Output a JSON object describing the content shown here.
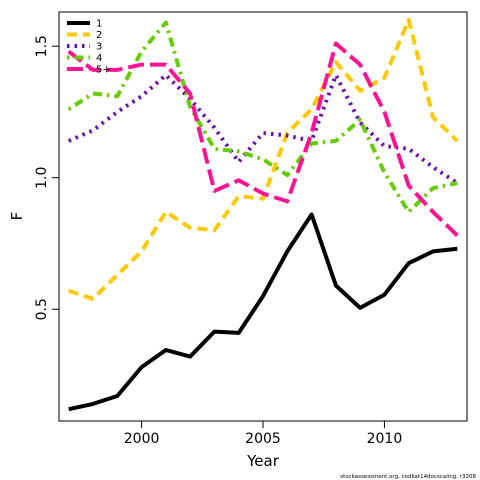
{
  "chart_data": {
    "type": "line",
    "xlabel": "Year",
    "ylabel": "F",
    "xlim": [
      1996.6,
      2013.4
    ],
    "ylim": [
      0.075,
      1.63
    ],
    "x_ticks": [
      2000,
      2005,
      2010
    ],
    "y_ticks": [
      0.5,
      1.0,
      1.5
    ],
    "legend_position": "top-left",
    "footnote": "stockassessment.org, codkat14docscaling, r3208",
    "x": [
      1997,
      1998,
      1999,
      2000,
      2001,
      2002,
      2003,
      2004,
      2005,
      2006,
      2007,
      2008,
      2009,
      2010,
      2011,
      2012,
      2013
    ],
    "series": [
      {
        "name": "1",
        "color": "#000000",
        "dash": "solid",
        "values": [
          0.12,
          0.14,
          0.17,
          0.28,
          0.345,
          0.32,
          0.415,
          0.41,
          0.55,
          0.72,
          0.86,
          0.59,
          0.505,
          0.555,
          0.675,
          0.72,
          0.73
        ]
      },
      {
        "name": "2",
        "color": "#FFC800",
        "dash": "dashed",
        "values": [
          0.57,
          0.54,
          0.63,
          0.72,
          0.87,
          0.81,
          0.8,
          0.93,
          0.92,
          1.17,
          1.26,
          1.44,
          1.33,
          1.38,
          1.6,
          1.23,
          1.14
        ]
      },
      {
        "name": "3",
        "color": "#6A0DAD",
        "dash": "dotted",
        "values": [
          1.14,
          1.18,
          1.25,
          1.31,
          1.39,
          1.3,
          1.19,
          1.06,
          1.17,
          1.16,
          1.14,
          1.39,
          1.21,
          1.12,
          1.11,
          1.04,
          0.98
        ]
      },
      {
        "name": "4",
        "color": "#66CC00",
        "dash": "dotdash",
        "values": [
          1.26,
          1.32,
          1.31,
          1.48,
          1.59,
          1.27,
          1.11,
          1.1,
          1.07,
          1.01,
          1.13,
          1.14,
          1.22,
          1.02,
          0.87,
          0.96,
          0.98
        ]
      },
      {
        "name": "5+",
        "color": "#FF1493",
        "dash": "longdash",
        "values": [
          1.48,
          1.41,
          1.41,
          1.43,
          1.43,
          1.32,
          0.95,
          0.99,
          0.94,
          0.91,
          1.17,
          1.51,
          1.43,
          1.25,
          0.97,
          0.87,
          0.78
        ]
      }
    ]
  }
}
